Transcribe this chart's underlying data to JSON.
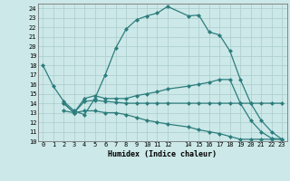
{
  "xlabel": "Humidex (Indice chaleur)",
  "bg_color": "#cce8e8",
  "line_color": "#2d7d7d",
  "grid_color": "#aacccc",
  "xlim": [
    -0.5,
    23.5
  ],
  "ylim": [
    10,
    24.5
  ],
  "yticks": [
    10,
    11,
    12,
    13,
    14,
    15,
    16,
    17,
    18,
    19,
    20,
    21,
    22,
    23,
    24
  ],
  "xtick_positions": [
    0,
    1,
    2,
    3,
    4,
    5,
    6,
    7,
    8,
    9,
    10,
    11,
    12,
    14,
    15,
    16,
    17,
    18,
    19,
    20,
    21,
    22,
    23
  ],
  "xtick_labels": [
    "0",
    "1",
    "2",
    "3",
    "4",
    "5",
    "6",
    "7",
    "8",
    "9",
    "10",
    "11",
    "12",
    "14",
    "15",
    "16",
    "17",
    "18",
    "19",
    "20",
    "21",
    "22",
    "23"
  ],
  "series": [
    {
      "x": [
        0,
        1,
        2,
        3,
        4,
        5,
        6,
        7,
        8,
        9,
        10,
        11,
        12,
        14,
        15,
        16,
        17,
        18,
        19,
        20,
        21,
        22,
        23
      ],
      "y": [
        18.0,
        15.8,
        14.2,
        13.2,
        12.8,
        14.5,
        17.0,
        19.8,
        21.8,
        22.8,
        23.2,
        23.5,
        24.2,
        23.2,
        23.3,
        21.5,
        21.2,
        19.5,
        16.5,
        14.0,
        12.2,
        11.0,
        10.2
      ]
    },
    {
      "x": [
        2,
        3,
        4,
        5,
        6,
        7,
        8,
        9,
        10,
        11,
        12,
        14,
        15,
        16,
        17,
        18,
        19,
        20,
        21,
        22,
        23
      ],
      "y": [
        14.0,
        13.0,
        14.5,
        14.8,
        14.5,
        14.5,
        14.5,
        14.8,
        15.0,
        15.2,
        15.5,
        15.8,
        16.0,
        16.2,
        16.5,
        16.5,
        14.0,
        12.2,
        11.0,
        10.3,
        10.2
      ]
    },
    {
      "x": [
        2,
        3,
        4,
        5,
        6,
        7,
        8,
        9,
        10,
        11,
        12,
        14,
        15,
        16,
        17,
        18,
        19,
        20,
        21,
        22,
        23
      ],
      "y": [
        14.0,
        13.0,
        14.2,
        14.3,
        14.2,
        14.1,
        14.0,
        14.0,
        14.0,
        14.0,
        14.0,
        14.0,
        14.0,
        14.0,
        14.0,
        14.0,
        14.0,
        14.0,
        14.0,
        14.0,
        14.0
      ]
    },
    {
      "x": [
        2,
        3,
        4,
        5,
        6,
        7,
        8,
        9,
        10,
        11,
        12,
        14,
        15,
        16,
        17,
        18,
        19,
        20,
        21,
        22,
        23
      ],
      "y": [
        13.2,
        13.0,
        13.2,
        13.2,
        13.0,
        13.0,
        12.8,
        12.5,
        12.2,
        12.0,
        11.8,
        11.5,
        11.2,
        11.0,
        10.8,
        10.5,
        10.2,
        10.2,
        10.2,
        10.2,
        10.2
      ]
    }
  ]
}
